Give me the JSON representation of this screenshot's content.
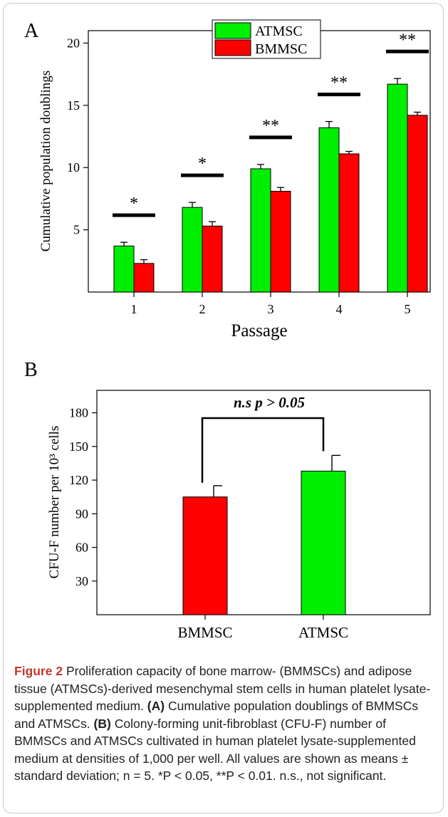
{
  "chart_data": [
    {
      "panel_label": "A",
      "type": "bar",
      "categories": [
        "1",
        "2",
        "3",
        "4",
        "5"
      ],
      "series": [
        {
          "name": "ATMSC",
          "color": "#00ee00",
          "values": [
            3.7,
            6.8,
            9.9,
            13.2,
            16.7
          ],
          "errors": [
            0.3,
            0.4,
            0.35,
            0.5,
            0.45
          ]
        },
        {
          "name": "BMMSC",
          "color": "#ff0000",
          "values": [
            2.3,
            5.3,
            8.1,
            11.1,
            14.2
          ],
          "errors": [
            0.3,
            0.35,
            0.3,
            0.2,
            0.25
          ]
        }
      ],
      "significance": [
        "*",
        "*",
        "**",
        "**",
        "**"
      ],
      "xlabel": "Passage",
      "ylabel": "Cumulative population doublings",
      "ylim": [
        0,
        21
      ],
      "yticks": [
        5,
        10,
        15,
        20
      ],
      "legend": "top-center"
    },
    {
      "panel_label": "B",
      "type": "bar",
      "categories": [
        "BMMSC",
        "ATMSC"
      ],
      "colors": [
        "#ff0000",
        "#00ee00"
      ],
      "values": [
        105,
        128
      ],
      "errors": [
        10,
        14
      ],
      "annotation": "n.s p > 0.05",
      "ylabel": "CFU-F number per 10³ cells",
      "ylim": [
        0,
        200
      ],
      "yticks": [
        30,
        60,
        90,
        120,
        150,
        180
      ]
    }
  ],
  "caption": {
    "figure_label": "Figure 2",
    "intro": "Proliferation capacity of bone marrow- (BMMSCs) and adipose tissue (ATMSCs)-derived mesenchymal stem cells in human platelet lysate-supplemented medium.",
    "part_a_label": "(A)",
    "part_a": "Cumulative population doublings of BMMSCs and ATMSCs.",
    "part_b_label": "(B)",
    "part_b": "Colony-forming unit-fibroblast (CFU-F) number of BMMSCs and ATMSCs cultivated in human platelet lysate-supplemented medium at densities of 1,000 per well. All values are shown as means ± standard deviation; n = 5. *P < 0.05, **P < 0.01. n.s., not significant."
  }
}
